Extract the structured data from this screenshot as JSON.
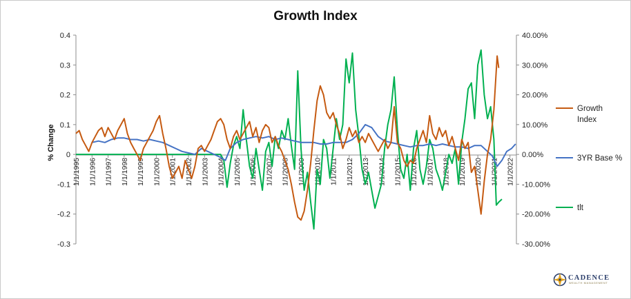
{
  "chart_data": {
    "type": "line",
    "title": "Growth Index",
    "ylabel": "% Change",
    "y_left_ticks": [
      "0.4",
      "0.3",
      "0.2",
      "0.1",
      "0",
      "-0.1",
      "-0.2",
      "-0.3"
    ],
    "y_left_range": [
      -0.3,
      0.4
    ],
    "y_right_ticks": [
      "40.00%",
      "30.00%",
      "20.00%",
      "10.00%",
      "0.00%",
      "-10.00%",
      "-20.00%",
      "-30.00%"
    ],
    "y_right_range": [
      -0.3,
      0.4
    ],
    "x_ticks": [
      "1/1/1995",
      "1/1/1996",
      "1/1/1997",
      "1/1/1998",
      "1/1/1999",
      "1/1/2000",
      "1/1/2001",
      "1/1/2002",
      "1/1/2003",
      "1/1/2004",
      "1/1/2005",
      "1/1/2006",
      "1/1/2007",
      "1/1/2008",
      "1/1/2009",
      "1/1/2010",
      "1/1/2011",
      "1/1/2012",
      "1/1/2013",
      "1/1/2014",
      "1/1/2015",
      "1/1/2016",
      "1/1/2017",
      "1/1/2018",
      "1/1/2019",
      "1/1/2020",
      "1/1/2021",
      "1/1/2022"
    ],
    "x_range": [
      1995.0,
      2022.4
    ],
    "grid": false,
    "legend_position": "right",
    "series": [
      {
        "name": "Growth Index",
        "axis": "left",
        "color": "#c55a11",
        "points": [
          [
            1995.0,
            0.07
          ],
          [
            1995.2,
            0.08
          ],
          [
            1995.4,
            0.05
          ],
          [
            1995.6,
            0.03
          ],
          [
            1995.8,
            0.01
          ],
          [
            1996.0,
            0.04
          ],
          [
            1996.2,
            0.06
          ],
          [
            1996.4,
            0.08
          ],
          [
            1996.6,
            0.09
          ],
          [
            1996.8,
            0.06
          ],
          [
            1997.0,
            0.09
          ],
          [
            1997.2,
            0.07
          ],
          [
            1997.4,
            0.05
          ],
          [
            1997.6,
            0.08
          ],
          [
            1997.8,
            0.1
          ],
          [
            1998.0,
            0.12
          ],
          [
            1998.2,
            0.07
          ],
          [
            1998.4,
            0.04
          ],
          [
            1998.6,
            0.02
          ],
          [
            1998.8,
            0.0
          ],
          [
            1999.0,
            -0.02
          ],
          [
            1999.2,
            0.02
          ],
          [
            1999.4,
            0.04
          ],
          [
            1999.6,
            0.06
          ],
          [
            1999.8,
            0.08
          ],
          [
            2000.0,
            0.11
          ],
          [
            2000.2,
            0.13
          ],
          [
            2000.4,
            0.07
          ],
          [
            2000.6,
            0.02
          ],
          [
            2000.8,
            -0.04
          ],
          [
            2001.0,
            -0.08
          ],
          [
            2001.2,
            -0.06
          ],
          [
            2001.4,
            -0.04
          ],
          [
            2001.6,
            -0.08
          ],
          [
            2001.8,
            -0.02
          ],
          [
            2002.0,
            -0.05
          ],
          [
            2002.2,
            -0.08
          ],
          [
            2002.4,
            -0.04
          ],
          [
            2002.6,
            0.02
          ],
          [
            2002.8,
            0.03
          ],
          [
            2003.0,
            0.01
          ],
          [
            2003.2,
            0.03
          ],
          [
            2003.4,
            0.05
          ],
          [
            2003.6,
            0.08
          ],
          [
            2003.8,
            0.11
          ],
          [
            2004.0,
            0.12
          ],
          [
            2004.2,
            0.1
          ],
          [
            2004.4,
            0.05
          ],
          [
            2004.6,
            0.02
          ],
          [
            2004.8,
            0.06
          ],
          [
            2005.0,
            0.08
          ],
          [
            2005.2,
            0.05
          ],
          [
            2005.4,
            0.07
          ],
          [
            2005.6,
            0.09
          ],
          [
            2005.8,
            0.11
          ],
          [
            2006.0,
            0.06
          ],
          [
            2006.2,
            0.09
          ],
          [
            2006.4,
            0.04
          ],
          [
            2006.6,
            0.08
          ],
          [
            2006.8,
            0.1
          ],
          [
            2007.0,
            0.09
          ],
          [
            2007.2,
            0.04
          ],
          [
            2007.4,
            0.06
          ],
          [
            2007.6,
            0.03
          ],
          [
            2007.8,
            0.01
          ],
          [
            2008.0,
            -0.02
          ],
          [
            2008.2,
            -0.05
          ],
          [
            2008.4,
            -0.1
          ],
          [
            2008.6,
            -0.16
          ],
          [
            2008.8,
            -0.21
          ],
          [
            2009.0,
            -0.22
          ],
          [
            2009.2,
            -0.19
          ],
          [
            2009.4,
            -0.12
          ],
          [
            2009.6,
            -0.03
          ],
          [
            2009.8,
            0.08
          ],
          [
            2010.0,
            0.18
          ],
          [
            2010.2,
            0.23
          ],
          [
            2010.4,
            0.2
          ],
          [
            2010.6,
            0.14
          ],
          [
            2010.8,
            0.12
          ],
          [
            2011.0,
            0.14
          ],
          [
            2011.2,
            0.1
          ],
          [
            2011.4,
            0.07
          ],
          [
            2011.6,
            0.02
          ],
          [
            2011.8,
            0.05
          ],
          [
            2012.0,
            0.09
          ],
          [
            2012.2,
            0.06
          ],
          [
            2012.4,
            0.08
          ],
          [
            2012.6,
            0.04
          ],
          [
            2012.8,
            0.06
          ],
          [
            2013.0,
            0.04
          ],
          [
            2013.2,
            0.07
          ],
          [
            2013.4,
            0.05
          ],
          [
            2013.6,
            0.03
          ],
          [
            2013.8,
            0.01
          ],
          [
            2014.0,
            0.03
          ],
          [
            2014.2,
            0.05
          ],
          [
            2014.4,
            0.02
          ],
          [
            2014.6,
            0.04
          ],
          [
            2014.8,
            0.16
          ],
          [
            2015.0,
            0.04
          ],
          [
            2015.2,
            0.02
          ],
          [
            2015.4,
            -0.02
          ],
          [
            2015.6,
            -0.04
          ],
          [
            2015.8,
            -0.02
          ],
          [
            2016.0,
            -0.03
          ],
          [
            2016.2,
            0.02
          ],
          [
            2016.4,
            0.05
          ],
          [
            2016.6,
            0.08
          ],
          [
            2016.8,
            0.04
          ],
          [
            2017.0,
            0.13
          ],
          [
            2017.2,
            0.07
          ],
          [
            2017.4,
            0.05
          ],
          [
            2017.6,
            0.09
          ],
          [
            2017.8,
            0.06
          ],
          [
            2018.0,
            0.08
          ],
          [
            2018.2,
            0.03
          ],
          [
            2018.4,
            0.06
          ],
          [
            2018.6,
            0.02
          ],
          [
            2018.8,
            -0.02
          ],
          [
            2019.0,
            0.05
          ],
          [
            2019.2,
            0.02
          ],
          [
            2019.4,
            0.04
          ],
          [
            2019.6,
            -0.06
          ],
          [
            2019.8,
            -0.04
          ],
          [
            2020.0,
            -0.12
          ],
          [
            2020.2,
            -0.2
          ],
          [
            2020.4,
            -0.09
          ],
          [
            2020.6,
            0.0
          ],
          [
            2020.8,
            0.05
          ],
          [
            2021.0,
            0.15
          ],
          [
            2021.2,
            0.33
          ],
          [
            2021.3,
            0.29
          ]
        ]
      },
      {
        "name": "3YR Base %",
        "axis": "right",
        "color": "#4472c4",
        "points": [
          [
            1996.0,
            0.04
          ],
          [
            1996.4,
            0.045
          ],
          [
            1996.8,
            0.04
          ],
          [
            1997.2,
            0.05
          ],
          [
            1997.6,
            0.055
          ],
          [
            1998.0,
            0.055
          ],
          [
            1998.4,
            0.05
          ],
          [
            1998.8,
            0.05
          ],
          [
            1999.2,
            0.045
          ],
          [
            1999.6,
            0.05
          ],
          [
            2000.0,
            0.045
          ],
          [
            2000.4,
            0.04
          ],
          [
            2000.8,
            0.03
          ],
          [
            2001.2,
            0.02
          ],
          [
            2001.6,
            0.01
          ],
          [
            2002.0,
            0.005
          ],
          [
            2002.4,
            0.0
          ],
          [
            2002.8,
            0.02
          ],
          [
            2003.2,
            0.01
          ],
          [
            2003.6,
            0.0
          ],
          [
            2004.0,
            -0.01
          ],
          [
            2004.3,
            -0.02
          ],
          [
            2004.6,
            0.02
          ],
          [
            2005.0,
            0.04
          ],
          [
            2005.4,
            0.05
          ],
          [
            2005.8,
            0.055
          ],
          [
            2006.2,
            0.06
          ],
          [
            2006.6,
            0.055
          ],
          [
            2007.0,
            0.06
          ],
          [
            2007.4,
            0.05
          ],
          [
            2007.8,
            0.055
          ],
          [
            2008.2,
            0.05
          ],
          [
            2008.6,
            0.045
          ],
          [
            2009.0,
            0.04
          ],
          [
            2009.4,
            0.04
          ],
          [
            2009.8,
            0.04
          ],
          [
            2010.2,
            0.035
          ],
          [
            2010.6,
            0.035
          ],
          [
            2011.0,
            0.04
          ],
          [
            2011.4,
            0.04
          ],
          [
            2011.8,
            0.04
          ],
          [
            2012.2,
            0.05
          ],
          [
            2012.6,
            0.07
          ],
          [
            2013.0,
            0.1
          ],
          [
            2013.4,
            0.09
          ],
          [
            2013.8,
            0.06
          ],
          [
            2014.2,
            0.045
          ],
          [
            2014.6,
            0.04
          ],
          [
            2015.0,
            0.035
          ],
          [
            2015.4,
            0.03
          ],
          [
            2015.8,
            0.025
          ],
          [
            2016.2,
            0.03
          ],
          [
            2016.6,
            0.03
          ],
          [
            2017.0,
            0.035
          ],
          [
            2017.4,
            0.03
          ],
          [
            2017.8,
            0.035
          ],
          [
            2018.2,
            0.03
          ],
          [
            2018.6,
            0.025
          ],
          [
            2019.0,
            0.025
          ],
          [
            2019.4,
            0.02
          ],
          [
            2019.8,
            0.03
          ],
          [
            2020.2,
            0.03
          ],
          [
            2020.6,
            0.01
          ],
          [
            2020.9,
            -0.005
          ],
          [
            2021.2,
            -0.04
          ],
          [
            2021.5,
            -0.02
          ],
          [
            2021.8,
            0.01
          ],
          [
            2022.1,
            0.02
          ],
          [
            2022.35,
            0.035
          ]
        ]
      },
      {
        "name": "tlt",
        "axis": "right",
        "color": "#00b050",
        "points": [
          [
            1995.0,
            0.0
          ],
          [
            2004.0,
            0.0
          ],
          [
            2004.2,
            -0.02
          ],
          [
            2004.4,
            -0.11
          ],
          [
            2004.6,
            -0.03
          ],
          [
            2004.8,
            0.03
          ],
          [
            2005.0,
            0.06
          ],
          [
            2005.2,
            0.02
          ],
          [
            2005.4,
            0.15
          ],
          [
            2005.6,
            0.05
          ],
          [
            2005.8,
            -0.04
          ],
          [
            2006.0,
            -0.08
          ],
          [
            2006.2,
            0.02
          ],
          [
            2006.4,
            -0.05
          ],
          [
            2006.6,
            -0.12
          ],
          [
            2006.8,
            0.01
          ],
          [
            2007.0,
            0.04
          ],
          [
            2007.2,
            -0.04
          ],
          [
            2007.4,
            0.06
          ],
          [
            2007.6,
            0.02
          ],
          [
            2007.8,
            0.08
          ],
          [
            2008.0,
            0.05
          ],
          [
            2008.2,
            0.12
          ],
          [
            2008.4,
            0.03
          ],
          [
            2008.6,
            -0.05
          ],
          [
            2008.8,
            0.28
          ],
          [
            2009.0,
            0.02
          ],
          [
            2009.2,
            -0.12
          ],
          [
            2009.4,
            -0.06
          ],
          [
            2009.6,
            -0.16
          ],
          [
            2009.8,
            -0.25
          ],
          [
            2010.0,
            -0.05
          ],
          [
            2010.2,
            -0.1
          ],
          [
            2010.4,
            0.05
          ],
          [
            2010.6,
            0.02
          ],
          [
            2010.8,
            -0.08
          ],
          [
            2011.0,
            0.02
          ],
          [
            2011.2,
            0.12
          ],
          [
            2011.4,
            0.05
          ],
          [
            2011.6,
            0.1
          ],
          [
            2011.8,
            0.32
          ],
          [
            2012.0,
            0.24
          ],
          [
            2012.2,
            0.34
          ],
          [
            2012.4,
            0.15
          ],
          [
            2012.6,
            0.06
          ],
          [
            2012.8,
            -0.05
          ],
          [
            2013.0,
            -0.1
          ],
          [
            2013.2,
            -0.06
          ],
          [
            2013.4,
            -0.12
          ],
          [
            2013.6,
            -0.18
          ],
          [
            2013.8,
            -0.14
          ],
          [
            2014.0,
            -0.1
          ],
          [
            2014.2,
            0.02
          ],
          [
            2014.4,
            0.1
          ],
          [
            2014.6,
            0.15
          ],
          [
            2014.8,
            0.26
          ],
          [
            2015.0,
            0.08
          ],
          [
            2015.2,
            -0.05
          ],
          [
            2015.4,
            -0.08
          ],
          [
            2015.6,
            0.0
          ],
          [
            2015.8,
            -0.12
          ],
          [
            2016.0,
            0.02
          ],
          [
            2016.2,
            0.08
          ],
          [
            2016.4,
            -0.05
          ],
          [
            2016.6,
            -0.1
          ],
          [
            2016.8,
            -0.04
          ],
          [
            2017.0,
            0.05
          ],
          [
            2017.2,
            0.02
          ],
          [
            2017.4,
            -0.05
          ],
          [
            2017.6,
            -0.08
          ],
          [
            2017.8,
            -0.12
          ],
          [
            2018.0,
            -0.06
          ],
          [
            2018.2,
            0.0
          ],
          [
            2018.4,
            -0.03
          ],
          [
            2018.6,
            0.02
          ],
          [
            2018.8,
            -0.1
          ],
          [
            2019.0,
            0.04
          ],
          [
            2019.2,
            0.12
          ],
          [
            2019.4,
            0.22
          ],
          [
            2019.6,
            0.24
          ],
          [
            2019.8,
            0.12
          ],
          [
            2020.0,
            0.3
          ],
          [
            2020.2,
            0.35
          ],
          [
            2020.4,
            0.2
          ],
          [
            2020.6,
            0.12
          ],
          [
            2020.8,
            0.16
          ],
          [
            2021.0,
            0.05
          ],
          [
            2021.15,
            -0.17
          ],
          [
            2021.3,
            -0.16
          ],
          [
            2021.5,
            -0.15
          ]
        ]
      }
    ]
  },
  "logo": {
    "name": "CADENCE",
    "tagline": "WEALTH MANAGEMENT",
    "colors": [
      "#2c3f6b",
      "#e3a21a"
    ]
  }
}
